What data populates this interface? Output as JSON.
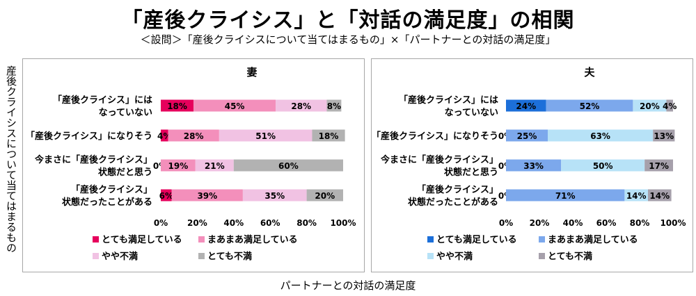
{
  "title": "「産後クライシス」と「対話の満足度」の相関",
  "subtitle": "＜設問＞「産後クライシスについて当てはまるもの」×「パートナーとの対話の満足度」",
  "ylabel": "産後クライシスについて当てはまるもの",
  "xlabel": "パートナーとの対話の満足度",
  "chart_data": [
    {
      "type": "bar",
      "stacked": true,
      "orientation": "horizontal",
      "title": "妻",
      "categories": [
        [
          "「産後クライシス」には",
          "なっていない"
        ],
        [
          "「産後クライシス」になりそう"
        ],
        [
          "今まさに「産後クライシス」",
          "状態だと思う"
        ],
        [
          "「産後クライシス」",
          "状態だったことがある"
        ]
      ],
      "xlim": [
        0,
        100
      ],
      "xticks": [
        "0%",
        "20%",
        "40%",
        "60%",
        "80%",
        "100%"
      ],
      "legend_position": "bottom",
      "series": [
        {
          "name": "とても満足している",
          "color": "#e6005c",
          "values": [
            18,
            4,
            0,
            6
          ],
          "labels": [
            "18%",
            "4%",
            "0%",
            "6%"
          ]
        },
        {
          "name": "まあまあ満足している",
          "color": "#f38fbb",
          "values": [
            45,
            28,
            19,
            39
          ],
          "labels": [
            "45%",
            "28%",
            "19%",
            "39%"
          ]
        },
        {
          "name": "やや不満",
          "color": "#f1c2e3",
          "values": [
            28,
            51,
            21,
            35
          ],
          "labels": [
            "28%",
            "51%",
            "21%",
            "35%"
          ]
        },
        {
          "name": "とても不満",
          "color": "#b2b2b2",
          "values": [
            8,
            18,
            60,
            20
          ],
          "labels": [
            "8%",
            "18%",
            "60%",
            "20%"
          ]
        }
      ]
    },
    {
      "type": "bar",
      "stacked": true,
      "orientation": "horizontal",
      "title": "夫",
      "categories": [
        [
          "「産後クライシス」には",
          "なっていない"
        ],
        [
          "「産後クライシス」になりそう"
        ],
        [
          "今まさに「産後クライシス」",
          "状態だと思う"
        ],
        [
          "「産後クライシス」",
          "状態だったことがある"
        ]
      ],
      "xlim": [
        0,
        100
      ],
      "xticks": [
        "0%",
        "20%",
        "40%",
        "60%",
        "80%",
        "100%"
      ],
      "legend_position": "bottom",
      "series": [
        {
          "name": "とても満足している",
          "color": "#1c6fd9",
          "values": [
            24,
            0,
            0,
            0
          ],
          "labels": [
            "24%",
            "0%",
            "0%",
            "0%"
          ]
        },
        {
          "name": "まあまあ満足している",
          "color": "#7ca8ec",
          "values": [
            52,
            25,
            33,
            71
          ],
          "labels": [
            "52%",
            "25%",
            "33%",
            "71%"
          ]
        },
        {
          "name": "やや不満",
          "color": "#b7e2f7",
          "values": [
            20,
            63,
            50,
            14
          ],
          "labels": [
            "20%",
            "63%",
            "50%",
            "14%"
          ]
        },
        {
          "name": "とても不満",
          "color": "#a6a0ab",
          "values": [
            4,
            13,
            17,
            14
          ],
          "labels": [
            "4%",
            "13%",
            "17%",
            "14%"
          ]
        }
      ]
    }
  ]
}
